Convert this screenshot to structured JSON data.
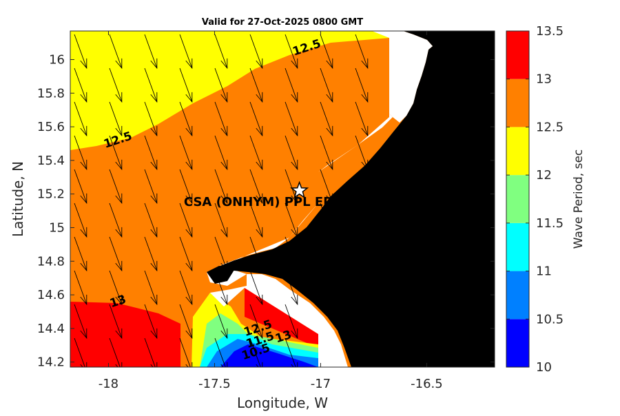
{
  "chart_data": {
    "type": "contourf-map",
    "title": "Valid for 27-Oct-2025 0800 GMT",
    "xlabel": "Longitude, W",
    "ylabel": "Latitude, N",
    "xlim": [
      -18.18,
      -16.18
    ],
    "ylim": [
      14.17,
      16.17
    ],
    "xticks": [
      -18,
      -17.5,
      -17,
      -16.5
    ],
    "xtick_labels": [
      "-18",
      "-17.5",
      "-17",
      "-16.5"
    ],
    "yticks": [
      14.2,
      14.4,
      14.6,
      14.8,
      15,
      15.2,
      15.4,
      15.6,
      15.8,
      16
    ],
    "ytick_labels": [
      "14.2",
      "14.4",
      "14.6",
      "14.8",
      "15",
      "15.2",
      "15.4",
      "15.6",
      "15.8",
      "16"
    ],
    "colorbar": {
      "label": "Wave Period, sec",
      "levels": [
        10,
        10.5,
        11,
        11.5,
        12,
        12.5,
        13,
        13.5
      ],
      "tick_labels": [
        "10",
        "10.5",
        "11",
        "11.5",
        "12",
        "12.5",
        "13",
        "13.5"
      ],
      "colors": [
        "#0000ff",
        "#0080ff",
        "#00ffff",
        "#80ff80",
        "#ffff00",
        "#ff8000",
        "#ff0000"
      ]
    },
    "land_color": "#000000",
    "nodata_color": "#ffffff",
    "contour_labels": [
      {
        "text": "12.5",
        "lon": -17.06,
        "lat": 16.05
      },
      {
        "text": "12.5",
        "lon": -17.95,
        "lat": 15.5
      },
      {
        "text": "13",
        "lon": -17.95,
        "lat": 14.54
      },
      {
        "text": "12.5",
        "lon": -17.29,
        "lat": 14.38
      },
      {
        "text": "13",
        "lon": -17.17,
        "lat": 14.33
      },
      {
        "text": "11.5",
        "lon": -17.28,
        "lat": 14.31
      },
      {
        "text": "10.5",
        "lon": -17.3,
        "lat": 14.24
      }
    ],
    "site": {
      "name": "CSA (ONHYM) PPL EP",
      "lon": -17.1,
      "lat": 15.22,
      "marker": "star"
    },
    "vectors_description": "direction arrows pointing roughly south-southeast offshore",
    "vector_direction_deg": 160
  }
}
